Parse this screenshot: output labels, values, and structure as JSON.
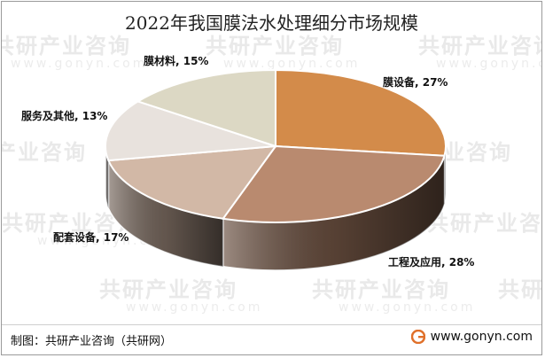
{
  "chart_data": {
    "type": "pie",
    "title": "2022年我国膜法水处理细分市场规模",
    "slices": [
      {
        "label": "膜设备",
        "value": 27,
        "color": "#d38b4a"
      },
      {
        "label": "工程及应用",
        "value": 28,
        "color": "#b98a6f"
      },
      {
        "label": "配套设备",
        "value": 17,
        "color": "#d2b8a6"
      },
      {
        "label": "服务及其他",
        "value": 13,
        "color": "#e8e2dd"
      },
      {
        "label": "膜材料",
        "value": 15,
        "color": "#dcd8c4"
      }
    ],
    "data_labels": [
      "膜设备, 27%",
      "工程及应用, 28%",
      "配套设备, 17%",
      "服务及其他, 13%",
      "膜材料, 15%"
    ]
  },
  "footer": {
    "source": "制图：共研产业咨询（共研网）",
    "site": "www.gonyn.com"
  },
  "watermark": {
    "brand": "共研产业咨询",
    "url": "www.gonyn.com"
  },
  "colors": {
    "logo_accent": "#e0702a"
  }
}
